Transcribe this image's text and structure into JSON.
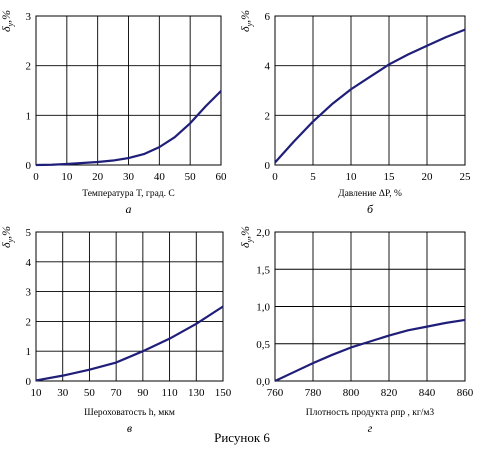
{
  "figure_caption": "Рисунок 6",
  "chart_data": [
    {
      "type": "line",
      "panel_letter": "а",
      "ylabel": {
        "main": "δ",
        "sub": "у",
        "suffix": ",%"
      },
      "xlabel": "Температура T, град. C",
      "xlim": [
        0,
        60
      ],
      "ylim": [
        0,
        3
      ],
      "xticks": [
        0,
        10,
        20,
        30,
        40,
        50,
        60
      ],
      "yticks": [
        0,
        1,
        2,
        3
      ],
      "ytick_labels": [
        "0",
        "1",
        "2",
        "3"
      ],
      "grid": true,
      "line_color": "#1f1f7a",
      "x": [
        0,
        5,
        10,
        15,
        20,
        25,
        30,
        35,
        40,
        45,
        50,
        55,
        60
      ],
      "y": [
        0,
        0.005,
        0.02,
        0.04,
        0.06,
        0.09,
        0.14,
        0.22,
        0.36,
        0.56,
        0.84,
        1.18,
        1.49
      ]
    },
    {
      "type": "line",
      "panel_letter": "б",
      "ylabel": {
        "main": "δ",
        "sub": "у",
        "suffix": ",%"
      },
      "xlabel": "Давление  ΔP, %",
      "xlim": [
        0,
        25
      ],
      "ylim": [
        0,
        6
      ],
      "xticks": [
        0,
        5,
        10,
        15,
        20,
        25
      ],
      "yticks": [
        0,
        2,
        4,
        6
      ],
      "ytick_labels": [
        "0",
        "2",
        "4",
        "6"
      ],
      "grid": true,
      "line_color": "#1f1f7a",
      "x": [
        0,
        2.5,
        5,
        7.5,
        10,
        12.5,
        15,
        17.5,
        20,
        22.5,
        25
      ],
      "y": [
        0.1,
        0.95,
        1.75,
        2.45,
        3.05,
        3.55,
        4.05,
        4.45,
        4.8,
        5.15,
        5.45
      ]
    },
    {
      "type": "line",
      "panel_letter": "в",
      "ylabel": {
        "main": "δ",
        "sub": "у",
        "suffix": ",%"
      },
      "xlabel": "Шероховатость h, мкм",
      "xlim": [
        10,
        150
      ],
      "ylim": [
        0,
        5
      ],
      "xticks": [
        10,
        30,
        50,
        70,
        90,
        110,
        130,
        150
      ],
      "yticks": [
        0,
        1,
        2,
        3,
        4,
        5
      ],
      "ytick_labels": [
        "0",
        "1",
        "2",
        "3",
        "4",
        "5"
      ],
      "grid": true,
      "line_color": "#1f1f7a",
      "x": [
        10,
        30,
        50,
        70,
        90,
        110,
        130,
        150
      ],
      "y": [
        0.02,
        0.18,
        0.38,
        0.62,
        1.0,
        1.42,
        1.92,
        2.5
      ]
    },
    {
      "type": "line",
      "panel_letter": "г",
      "ylabel": {
        "main": "δ",
        "sub": "у",
        "suffix": ",%"
      },
      "xlabel": "Плотность продукта  ρпр , кг/м3",
      "xlim": [
        760,
        860
      ],
      "ylim": [
        0,
        2
      ],
      "xticks": [
        760,
        780,
        800,
        820,
        840,
        860
      ],
      "yticks": [
        0,
        0.5,
        1,
        1.5,
        2
      ],
      "ytick_labels": [
        "0,0",
        "0,5",
        "1,0",
        "1,5",
        "2,0"
      ],
      "grid": true,
      "line_color": "#1f1f7a",
      "x": [
        760,
        770,
        780,
        790,
        800,
        810,
        820,
        830,
        840,
        850,
        860
      ],
      "y": [
        0.0,
        0.12,
        0.24,
        0.35,
        0.45,
        0.53,
        0.61,
        0.68,
        0.73,
        0.78,
        0.82
      ]
    }
  ]
}
